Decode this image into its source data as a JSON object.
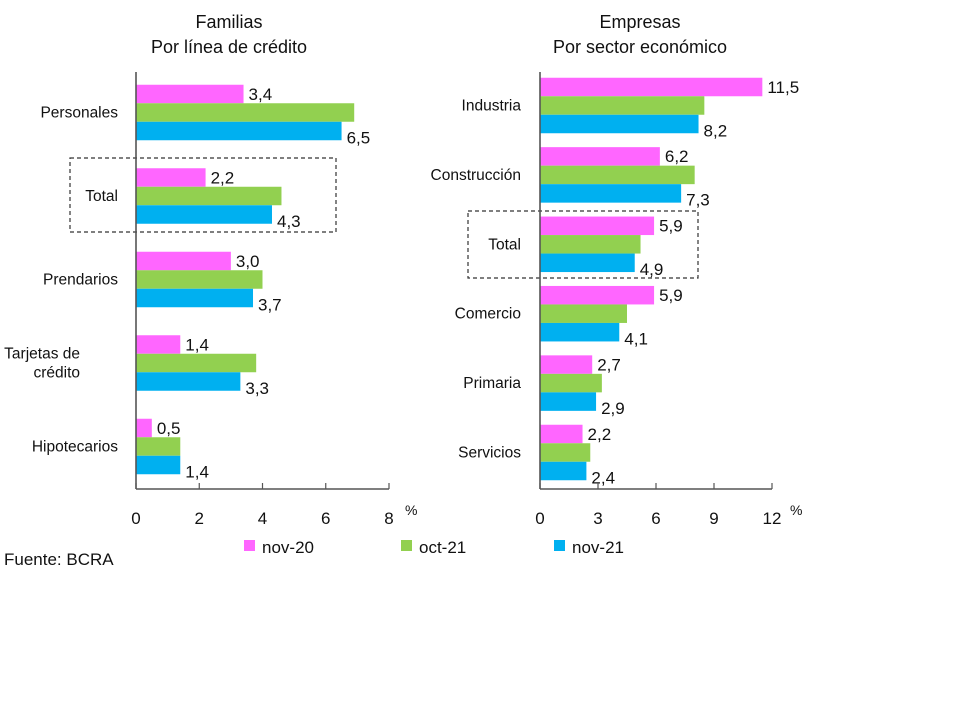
{
  "chart_data": [
    {
      "type": "bar",
      "orientation": "horizontal",
      "title": "Familias",
      "subtitle": "Por línea de crédito",
      "categories": [
        "Personales",
        "Total",
        "Prendarios",
        "Tarjetas de crédito",
        "Hipotecarios"
      ],
      "category_lines": [
        [
          "Personales"
        ],
        [
          "Total"
        ],
        [
          "Prendarios"
        ],
        [
          "Tarjetas de",
          "crédito"
        ],
        [
          "Hipotecarios"
        ]
      ],
      "series": [
        {
          "name": "nov-20",
          "values": [
            3.4,
            2.2,
            3.0,
            1.4,
            0.5
          ],
          "labeled": true
        },
        {
          "name": "oct-21",
          "values": [
            6.9,
            4.6,
            4.0,
            3.8,
            1.4
          ],
          "labeled": false
        },
        {
          "name": "nov-21",
          "values": [
            6.5,
            4.3,
            3.7,
            3.3,
            1.4
          ],
          "labeled": true
        }
      ],
      "value_labels": {
        "nov-20": [
          "3,4",
          "2,2",
          "3,0",
          "1,4",
          "0,5"
        ],
        "nov-21": [
          "6,5",
          "4,3",
          "3,7",
          "3,3",
          "1,4"
        ]
      },
      "highlighted_category": "Total",
      "xlim": [
        0,
        8
      ],
      "xticks": [
        0,
        2,
        4,
        6,
        8
      ],
      "xtick_labels": [
        "0",
        "2",
        "4",
        "6",
        "8"
      ],
      "xlabel": "%",
      "grid": false
    },
    {
      "type": "bar",
      "orientation": "horizontal",
      "title": "Empresas",
      "subtitle": "Por sector económico",
      "categories": [
        "Industria",
        "Construcción",
        "Total",
        "Comercio",
        "Primaria",
        "Servicios"
      ],
      "category_lines": [
        [
          "Industria"
        ],
        [
          "Construcción"
        ],
        [
          "Total"
        ],
        [
          "Comercio"
        ],
        [
          "Primaria"
        ],
        [
          "Servicios"
        ]
      ],
      "series": [
        {
          "name": "nov-20",
          "values": [
            11.5,
            6.2,
            5.9,
            5.9,
            2.7,
            2.2
          ],
          "labeled": true
        },
        {
          "name": "oct-21",
          "values": [
            8.5,
            8.0,
            5.2,
            4.5,
            3.2,
            2.6
          ],
          "labeled": false
        },
        {
          "name": "nov-21",
          "values": [
            8.2,
            7.3,
            4.9,
            4.1,
            2.9,
            2.4
          ],
          "labeled": true
        }
      ],
      "value_labels": {
        "nov-20": [
          "11,5",
          "6,2",
          "5,9",
          "5,9",
          "2,7",
          "2,2"
        ],
        "nov-21": [
          "8,2",
          "7,3",
          "4,9",
          "4,1",
          "2,9",
          "2,4"
        ]
      },
      "highlighted_category": "Total",
      "xlim": [
        0,
        12
      ],
      "xticks": [
        0,
        3,
        6,
        9,
        12
      ],
      "xtick_labels": [
        "0",
        "3",
        "6",
        "9",
        "12"
      ],
      "xlabel": "%",
      "grid": false
    }
  ],
  "legend": {
    "placement": "bottom",
    "items": [
      {
        "name": "nov-20",
        "color": "#ff66ff"
      },
      {
        "name": "oct-21",
        "color": "#92d050"
      },
      {
        "name": "nov-21",
        "color": "#00b0f0"
      }
    ]
  },
  "colors": {
    "nov-20": "#ff66ff",
    "oct-21": "#92d050",
    "nov-21": "#00b0f0",
    "axis": "#555555",
    "text": "#111111"
  },
  "source": "Fuente: BCRA"
}
